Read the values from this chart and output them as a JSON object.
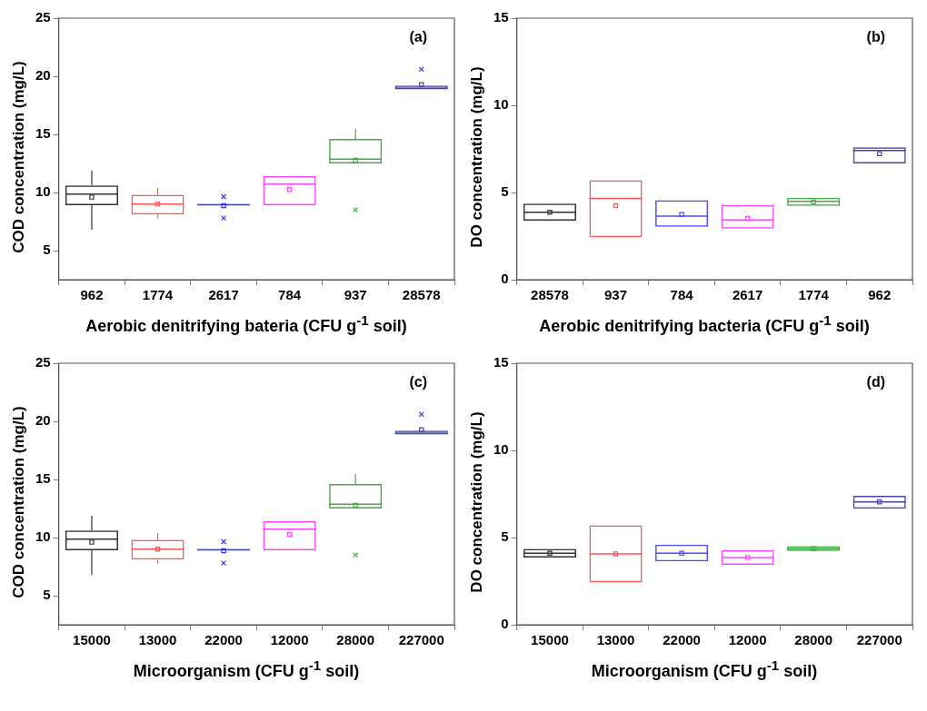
{
  "chart_data": [
    {
      "type": "box",
      "xlabel": "Aerobic denitrifying bateria (CFU g$^{-1}$ soil)",
      "ylabel": "COD concentration (mg/L)",
      "annotations": [
        "(a)"
      ],
      "categories": [
        "962",
        "1774",
        "2617",
        "784",
        "937",
        "28578"
      ],
      "colors": [
        "#333333",
        "#ff5555",
        "#3333ff",
        "#ff44ff",
        "#44aa44",
        "#4444aa"
      ],
      "ylim": [
        2.5,
        25
      ],
      "yticks": [
        5,
        10,
        15,
        20,
        25
      ],
      "boxes": [
        {
          "low": 6.8,
          "q1": 8.9,
          "median": 9.87,
          "q3": 10.6,
          "high": 11.87,
          "mean": 9.6
        },
        {
          "low": 7.75,
          "q1": 8.1,
          "median": 9.0,
          "q3": 9.8,
          "high": 10.4,
          "mean": 9.0
        },
        {
          "low": 8.9,
          "q1": 8.9,
          "median": 8.95,
          "q3": 9.0,
          "high": 9.0,
          "mean": 8.86,
          "outliers": [
            9.65,
            7.8
          ]
        },
        {
          "low": 8.9,
          "q1": 8.9,
          "median": 10.73,
          "q3": 11.4,
          "high": 11.4,
          "mean": 10.25
        },
        {
          "low": 12.5,
          "q1": 12.5,
          "median": 12.88,
          "q3": 14.6,
          "high": 15.48,
          "mean": 12.78,
          "outliers": [
            8.5
          ]
        },
        {
          "low": 18.9,
          "q1": 18.9,
          "median": 18.95,
          "q3": 19.2,
          "high": 19.2,
          "mean": 19.27,
          "outliers": [
            20.6
          ]
        }
      ]
    },
    {
      "type": "box",
      "xlabel": "Aerobic denitrifying bacteria (CFU g$^{-1}$ soil)",
      "ylabel": "DO concentration (mg/L)",
      "annotations": [
        "(b)"
      ],
      "categories": [
        "28578",
        "937",
        "784",
        "2617",
        "1774",
        "962"
      ],
      "colors": [
        "#333333",
        "#ff5555",
        "#4d4dff",
        "#ff44ff",
        "#44aa44",
        "#4444aa"
      ],
      "ylim": [
        0,
        15
      ],
      "yticks": [
        0,
        5,
        10,
        15
      ],
      "boxes": [
        {
          "low": 3.38,
          "q1": 3.38,
          "median": 3.87,
          "q3": 4.36,
          "high": 4.36,
          "mean": 3.87
        },
        {
          "low": 2.43,
          "q1": 2.43,
          "median": 4.66,
          "q3": 5.7,
          "high": 5.7,
          "mean": 4.25
        },
        {
          "low": 3.03,
          "q1": 3.03,
          "median": 3.64,
          "q3": 4.56,
          "high": 4.56,
          "mean": 3.74
        },
        {
          "low": 2.93,
          "q1": 2.93,
          "median": 3.43,
          "q3": 4.28,
          "high": 4.28,
          "mean": 3.52
        },
        {
          "low": 4.23,
          "q1": 4.23,
          "median": 4.49,
          "q3": 4.7,
          "high": 4.7,
          "mean": 4.46
        },
        {
          "low": 6.67,
          "q1": 6.67,
          "median": 7.41,
          "q3": 7.59,
          "high": 7.59,
          "mean": 7.23
        }
      ]
    },
    {
      "type": "box",
      "xlabel": "Microorganism (CFU g$^{-1}$ soil)",
      "ylabel": "COD concentration (mg/L)",
      "annotations": [
        "(c)"
      ],
      "categories": [
        "15000",
        "13000",
        "22000",
        "12000",
        "28000",
        "227000"
      ],
      "colors": [
        "#333333",
        "#ff5555",
        "#3333ff",
        "#ff44ff",
        "#44aa44",
        "#4444aa"
      ],
      "ylim": [
        2.5,
        25
      ],
      "yticks": [
        5,
        10,
        15,
        20,
        25
      ],
      "boxes": [
        {
          "low": 6.8,
          "q1": 8.9,
          "median": 9.87,
          "q3": 10.6,
          "high": 11.87,
          "mean": 9.6
        },
        {
          "low": 7.75,
          "q1": 8.1,
          "median": 9.0,
          "q3": 9.8,
          "high": 10.4,
          "mean": 9.0
        },
        {
          "low": 8.9,
          "q1": 8.9,
          "median": 8.95,
          "q3": 9.0,
          "high": 9.0,
          "mean": 8.86,
          "outliers": [
            9.65,
            7.8
          ]
        },
        {
          "low": 8.9,
          "q1": 8.9,
          "median": 10.73,
          "q3": 11.4,
          "high": 11.4,
          "mean": 10.25
        },
        {
          "low": 12.5,
          "q1": 12.5,
          "median": 12.88,
          "q3": 14.6,
          "high": 15.48,
          "mean": 12.78,
          "outliers": [
            8.5
          ]
        },
        {
          "low": 18.9,
          "q1": 18.9,
          "median": 18.95,
          "q3": 19.2,
          "high": 19.2,
          "mean": 19.27,
          "outliers": [
            20.6
          ]
        }
      ]
    },
    {
      "type": "box",
      "xlabel": "Microorganism (CFU g$^{-1}$ soil)",
      "ylabel": "DO concentration (mg/L)",
      "annotations": [
        "(d)"
      ],
      "categories": [
        "15000",
        "13000",
        "22000",
        "12000",
        "28000",
        "227000"
      ],
      "colors": [
        "#333333",
        "#ff5555",
        "#4d4dff",
        "#ff44ff",
        "#44aa44",
        "#4444aa"
      ],
      "ylim": [
        0,
        15
      ],
      "yticks": [
        0,
        5,
        10,
        15
      ],
      "boxes": [
        {
          "low": 3.86,
          "q1": 3.86,
          "median": 4.1,
          "q3": 4.35,
          "high": 4.35,
          "mean": 4.1
        },
        {
          "low": 2.44,
          "q1": 2.44,
          "median": 4.06,
          "q3": 5.7,
          "high": 5.7,
          "mean": 4.06
        },
        {
          "low": 3.63,
          "q1": 3.63,
          "median": 4.1,
          "q3": 4.59,
          "high": 4.59,
          "mean": 4.1
        },
        {
          "low": 3.44,
          "q1": 3.44,
          "median": 3.86,
          "q3": 4.27,
          "high": 4.27,
          "mean": 3.86
        },
        {
          "low": 4.23,
          "q1": 4.23,
          "median": 4.36,
          "q3": 4.51,
          "high": 4.51,
          "mean": 4.36
        },
        {
          "low": 6.66,
          "q1": 6.66,
          "median": 7.04,
          "q3": 7.39,
          "high": 7.39,
          "mean": 7.04
        }
      ]
    }
  ]
}
